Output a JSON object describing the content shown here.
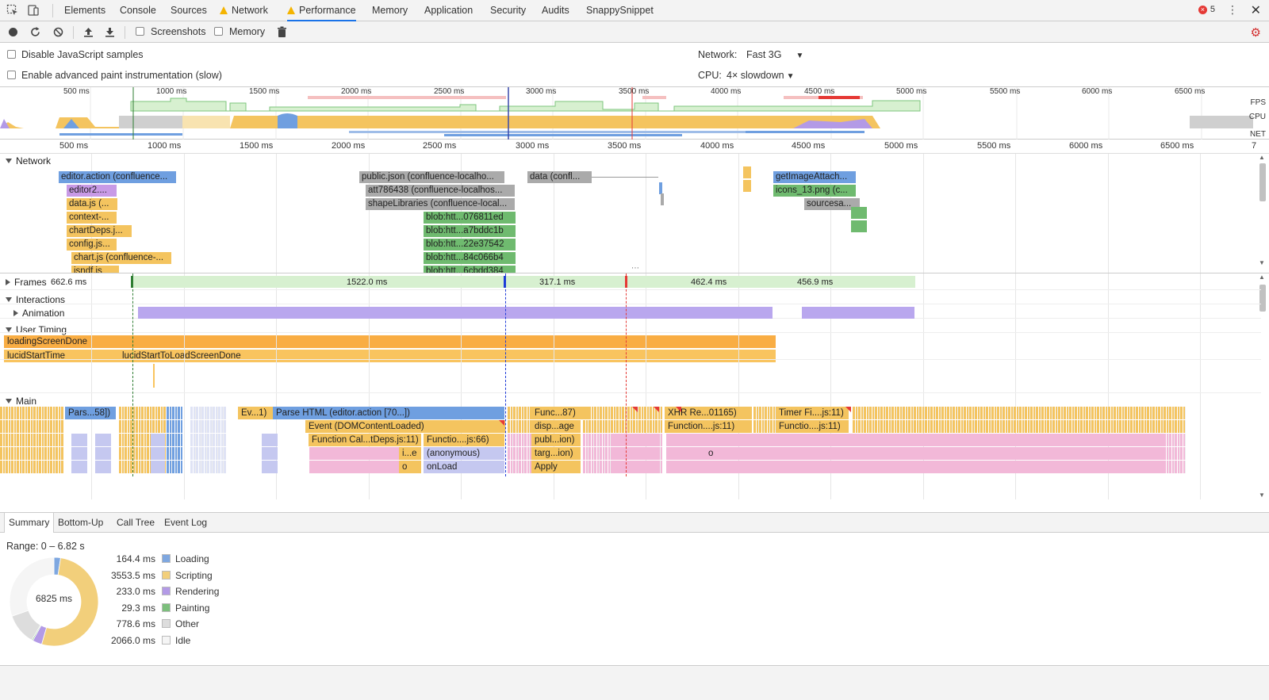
{
  "top_tabs": [
    {
      "label": "Elements",
      "warn": false,
      "active": false
    },
    {
      "label": "Console",
      "warn": false,
      "active": false
    },
    {
      "label": "Sources",
      "warn": false,
      "active": false
    },
    {
      "label": "Network",
      "warn": true,
      "active": false
    },
    {
      "label": "Performance",
      "warn": true,
      "active": true
    },
    {
      "label": "Memory",
      "warn": false,
      "active": false
    },
    {
      "label": "Application",
      "warn": false,
      "active": false
    },
    {
      "label": "Security",
      "warn": false,
      "active": false
    },
    {
      "label": "Audits",
      "warn": false,
      "active": false
    },
    {
      "label": "SnappySnippet",
      "warn": false,
      "active": false
    }
  ],
  "error_count": "5",
  "toolbar": {
    "screenshots_label": "Screenshots",
    "memory_label": "Memory"
  },
  "settings": {
    "disable_js_samples": "Disable JavaScript samples",
    "advanced_paint": "Enable advanced paint instrumentation (slow)",
    "network_label": "Network:",
    "network_value": "Fast 3G",
    "cpu_label": "CPU:",
    "cpu_value": "4× slowdown"
  },
  "overview": {
    "ticks": [
      "500 ms",
      "1000 ms",
      "1500 ms",
      "2000 ms",
      "2500 ms",
      "3000 ms",
      "3500 ms",
      "4000 ms",
      "4500 ms",
      "5000 ms",
      "5500 ms",
      "6000 ms",
      "6500 ms"
    ],
    "fps_label": "FPS",
    "cpu_label": "CPU",
    "net_label": "NET"
  },
  "ruler": {
    "ticks": [
      "500 ms",
      "1000 ms",
      "1500 ms",
      "2000 ms",
      "2500 ms",
      "3000 ms",
      "3500 ms",
      "4000 ms",
      "4500 ms",
      "5000 ms",
      "5500 ms",
      "6000 ms",
      "6500 ms",
      "7"
    ]
  },
  "network": {
    "label": "Network",
    "requests": [
      {
        "label": "editor.action (confluence...",
        "color": "#6f9fe0"
      },
      {
        "label": "editor2....",
        "color": "#c89ae6"
      },
      {
        "label": "data.js (...",
        "color": "#f4c45f"
      },
      {
        "label": "context-...",
        "color": "#f4c45f"
      },
      {
        "label": "chartDeps.j...",
        "color": "#f4c45f"
      },
      {
        "label": "config.js...",
        "color": "#f4c45f"
      },
      {
        "label": "chart.js (confluence-...",
        "color": "#f4c45f"
      },
      {
        "label": "jsndf.js",
        "color": "#f4c45f"
      },
      {
        "label": "public.json (confluence-localho...",
        "color": "#aaaaaa"
      },
      {
        "label": "att786438 (confluence-localhos...",
        "color": "#aaaaaa"
      },
      {
        "label": "shapeLibraries (confluence-local...",
        "color": "#aaaaaa"
      },
      {
        "label": "blob:htt...076811ed",
        "color": "#6fba6f"
      },
      {
        "label": "blob:htt...a7bddc1b",
        "color": "#6fba6f"
      },
      {
        "label": "blob:htt...22e37542",
        "color": "#6fba6f"
      },
      {
        "label": "blob:htt...84c066b4",
        "color": "#6fba6f"
      },
      {
        "label": "blob:htt...6cbdd384",
        "color": "#6fba6f"
      },
      {
        "label": "data (confl...",
        "color": "#aaaaaa"
      },
      {
        "label": "getImageAttach...",
        "color": "#6f9fe0"
      },
      {
        "label": "icons_13.png (c...",
        "color": "#6fba6f"
      },
      {
        "label": "sourcesa...",
        "color": "#aaaaaa"
      }
    ]
  },
  "frames": {
    "label": "Frames",
    "first_value": "662.6 ms",
    "segments": [
      "1522.0 ms",
      "317.1 ms",
      "462.4 ms",
      "456.9 ms"
    ]
  },
  "interactions": {
    "label": "Interactions",
    "animation_label": "Animation"
  },
  "user_timing": {
    "label": "User Timing",
    "loading_screen_done": "loadingScreenDone",
    "lucid_start_time": "lucidStartTime",
    "lucid_start_to_load": "lucidStartToLoadScreenDone"
  },
  "main": {
    "label": "Main",
    "events": [
      {
        "label": "Pars...58])",
        "color": "#6f9fe0"
      },
      {
        "label": "Ev...1)",
        "color": "#f4c45f"
      },
      {
        "label": "Parse HTML (editor.action [70...])",
        "color": "#6f9fe0"
      },
      {
        "label": "Event (DOMContentLoaded)",
        "color": "#f4c45f"
      },
      {
        "label": "Function Cal...tDeps.js:11)",
        "color": "#f4c45f"
      },
      {
        "label": "Functio....js:66)",
        "color": "#f4c45f"
      },
      {
        "label": "i...e",
        "color": "#f4c45f"
      },
      {
        "label": "(anonymous)",
        "color": "#c5c8f0"
      },
      {
        "label": "o",
        "color": "#f4c45f"
      },
      {
        "label": "onLoad",
        "color": "#c5c8f0"
      },
      {
        "label": "Func...87)",
        "color": "#f4c45f"
      },
      {
        "label": "disp...age",
        "color": "#f4c45f"
      },
      {
        "label": "publ...ion)",
        "color": "#f4c45f"
      },
      {
        "label": "targ...ion)",
        "color": "#f4c45f"
      },
      {
        "label": "Apply",
        "color": "#f4c45f"
      },
      {
        "label": "XHR Re...01165)",
        "color": "#f4c45f"
      },
      {
        "label": "Function....js:11)",
        "color": "#f4c45f"
      },
      {
        "label": "o",
        "color": "#f2b8d8"
      },
      {
        "label": "Timer Fi....js:11)",
        "color": "#f4c45f"
      },
      {
        "label": "Functio....js:11)",
        "color": "#f4c45f"
      }
    ]
  },
  "bottom_tabs": [
    "Summary",
    "Bottom-Up",
    "Call Tree",
    "Event Log"
  ],
  "summary": {
    "range": "Range: 0 – 6.82 s",
    "total": "6825 ms",
    "items": [
      {
        "value": "164.4 ms",
        "label": "Loading",
        "color": "#7ea7e0",
        "ms": 164.4
      },
      {
        "value": "3553.5 ms",
        "label": "Scripting",
        "color": "#f2cf7b",
        "ms": 3553.5
      },
      {
        "value": "233.0 ms",
        "label": "Rendering",
        "color": "#b39ae6",
        "ms": 233.0
      },
      {
        "value": "29.3 ms",
        "label": "Painting",
        "color": "#7cbf7c",
        "ms": 29.3
      },
      {
        "value": "778.6 ms",
        "label": "Other",
        "color": "#dddddd",
        "ms": 778.6
      },
      {
        "value": "2066.0 ms",
        "label": "Idle",
        "color": "#f5f5f5",
        "ms": 2066.0
      }
    ]
  }
}
